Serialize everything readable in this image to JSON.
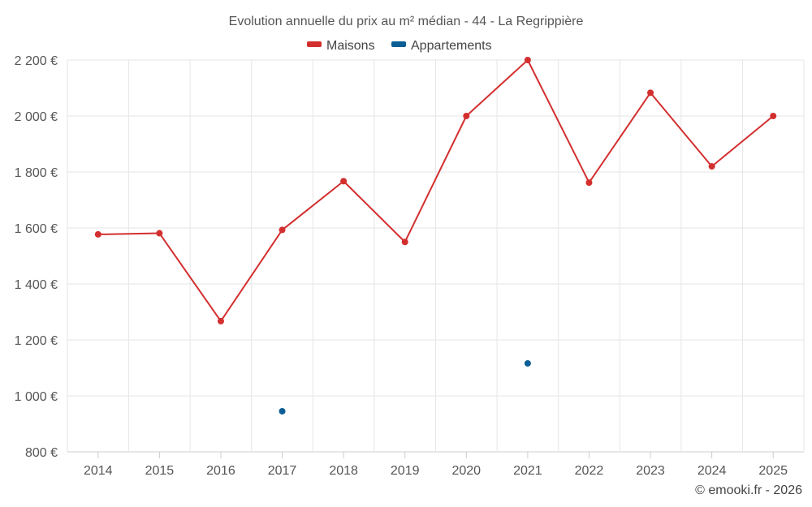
{
  "chart_data": {
    "type": "line",
    "title": "Evolution annuelle du prix au m² médian - 44 - La Regrippière",
    "categories": [
      "2014",
      "2015",
      "2016",
      "2017",
      "2018",
      "2019",
      "2020",
      "2021",
      "2022",
      "2023",
      "2024",
      "2025"
    ],
    "ylim": [
      800,
      2200
    ],
    "yticks": [
      800,
      1000,
      1200,
      1400,
      1600,
      1800,
      2000,
      2200
    ],
    "ytick_labels": [
      "800 €",
      "1 000 €",
      "1 200 €",
      "1 400 €",
      "1 600 €",
      "1 800 €",
      "2 000 €",
      "2 200 €"
    ],
    "grid": true,
    "legend_position": "top-center",
    "series": [
      {
        "name": "Maisons",
        "color": "#d32f2f",
        "values": [
          1577,
          1581,
          1267,
          1593,
          1767,
          1550,
          2000,
          2200,
          1762,
          2083,
          1820,
          2000
        ]
      },
      {
        "name": "Appartements",
        "color": "#0b5e96",
        "values": [
          null,
          null,
          null,
          945,
          null,
          null,
          null,
          1116,
          null,
          null,
          null,
          null
        ]
      }
    ]
  },
  "credit": "© emooki.fr - 2026"
}
